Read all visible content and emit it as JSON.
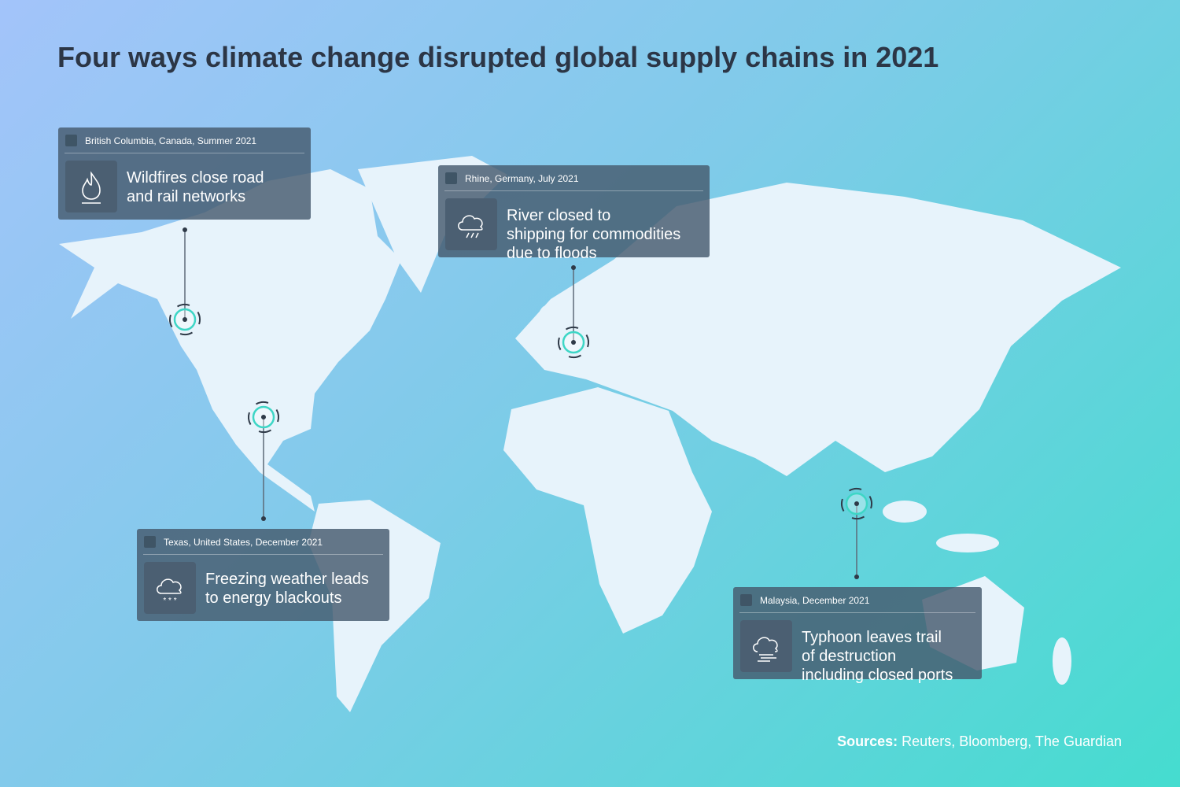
{
  "header": {
    "title": "Four ways climate change disrupted global supply chains in 2021"
  },
  "events": [
    {
      "location": "British Columbia, Canada, Summer 2021",
      "description_lines": [
        "Wildfires close road",
        "and rail networks"
      ]
    },
    {
      "location": "Rhine, Germany, July 2021",
      "description_lines": [
        "River closed to",
        "shipping for commodities",
        "due to floods"
      ]
    },
    {
      "location": "Texas, United States, December 2021",
      "description_lines": [
        "Freezing weather leads",
        "to energy blackouts"
      ]
    },
    {
      "location": "Malaysia, December 2021",
      "description_lines": [
        "Typhoon leaves trail",
        "of destruction",
        "including closed ports"
      ]
    }
  ],
  "footer": {
    "sources_label": "Sources:",
    "sources": "Reuters, Bloomberg, The Guardian"
  }
}
